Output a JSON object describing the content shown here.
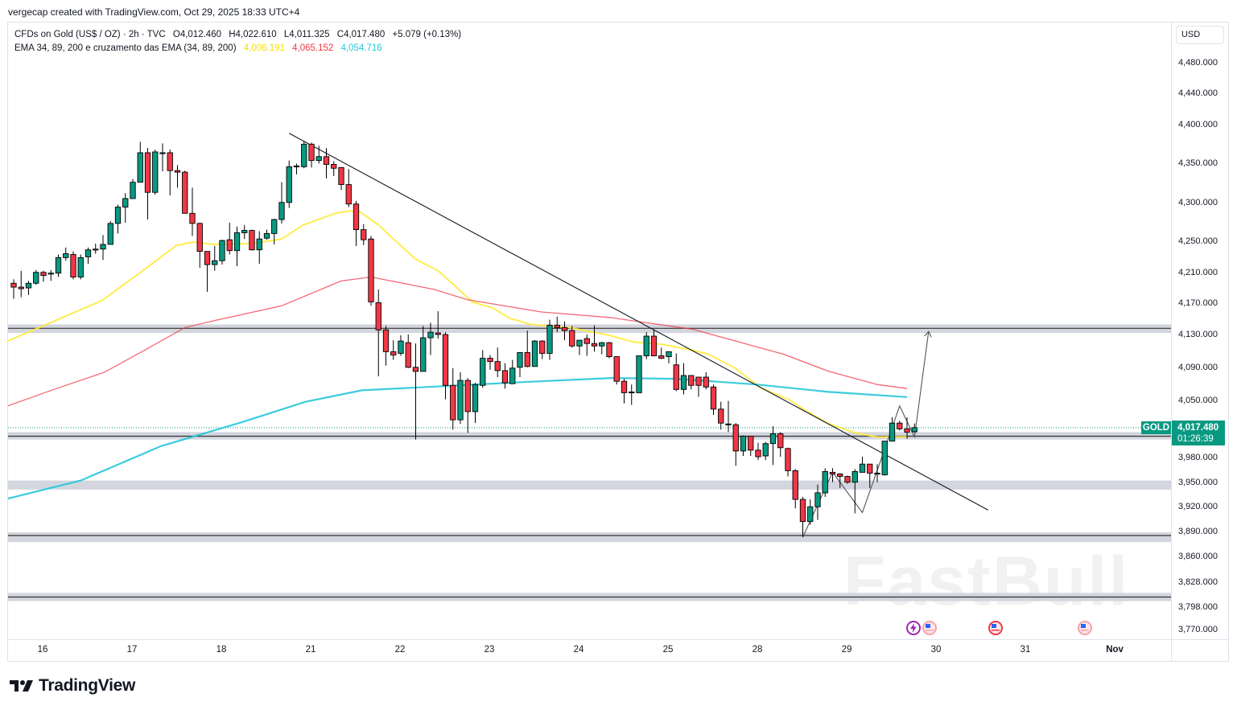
{
  "header": {
    "credit": "vergecap created with TradingView.com, Oct 29, 2025 18:33 UTC+4"
  },
  "legend": {
    "symbol": "CFDs on Gold (US$ / OZ) · 2h · TVC",
    "open": "O4,012.460",
    "high": "H4,022.610",
    "low": "L4,011.325",
    "close": "C4,017.480",
    "change": "+5.079 (+0.13%)",
    "indicator": "EMA 34, 89, 200 e cruzamento das EMA (34, 89, 200)",
    "ema34": "4,006.191",
    "ema89": "4,065.152",
    "ema200": "4,054.716"
  },
  "price_axis": {
    "currency": "USD",
    "ticks": [
      "4,480.000",
      "4,440.000",
      "4,400.000",
      "4,350.000",
      "4,300.000",
      "4,250.000",
      "4,210.000",
      "4,170.000",
      "4,130.000",
      "4,090.000",
      "4,050.000",
      "3,980.000",
      "3,950.000",
      "3,920.000",
      "3,890.000",
      "3,860.000",
      "3,828.000",
      "3,798.000",
      "3,770.000"
    ],
    "tick_values": [
      4480,
      4440,
      4400,
      4350,
      4300,
      4250,
      4210,
      4170,
      4130,
      4090,
      4050,
      3980,
      3950,
      3920,
      3890,
      3860,
      3828,
      3798,
      3770
    ],
    "last_price_label": "4,017.480",
    "countdown": "01:26:39",
    "symbol_tag": "GOLD"
  },
  "time_axis": {
    "labels": [
      "16",
      "17",
      "18",
      "21",
      "22",
      "23",
      "24",
      "25",
      "28",
      "29",
      "30",
      "31",
      "Nov"
    ]
  },
  "footer": {
    "brand": "TradingView"
  },
  "watermark": "FastBull",
  "colors": {
    "up": "#089981",
    "down": "#F23645",
    "ema34": "#FFEB3B",
    "ema89": "#F23645",
    "ema200": "#26C6DA",
    "zone": "#D1D4DC",
    "trendline": "#131722"
  },
  "chart_data": {
    "type": "candlestick",
    "symbol": "CFDs on Gold (US$ / OZ)",
    "interval": "2h",
    "ylim": [
      3770,
      4480
    ],
    "last_close": 4017.48,
    "candles_ohlc": [
      [
        4197,
        4202,
        4177,
        4192
      ],
      [
        4192,
        4213,
        4179,
        4190
      ],
      [
        4191,
        4200,
        4182,
        4197
      ],
      [
        4197,
        4214,
        4195,
        4211
      ],
      [
        4211,
        4213,
        4199,
        4207
      ],
      [
        4210,
        4214,
        4200,
        4210
      ],
      [
        4210,
        4234,
        4205,
        4230
      ],
      [
        4230,
        4243,
        4226,
        4235
      ],
      [
        4234,
        4238,
        4202,
        4205
      ],
      [
        4205,
        4234,
        4202,
        4230
      ],
      [
        4231,
        4243,
        4222,
        4240
      ],
      [
        4241,
        4248,
        4235,
        4241
      ],
      [
        4241,
        4259,
        4227,
        4247
      ],
      [
        4247,
        4277,
        4247,
        4274
      ],
      [
        4274,
        4298,
        4261,
        4295
      ],
      [
        4295,
        4313,
        4275,
        4306
      ],
      [
        4306,
        4331,
        4306,
        4327
      ],
      [
        4327,
        4379,
        4327,
        4365
      ],
      [
        4365,
        4371,
        4279,
        4314
      ],
      [
        4314,
        4369,
        4311,
        4366
      ],
      [
        4365,
        4377,
        4341,
        4365
      ],
      [
        4365,
        4369,
        4310,
        4342
      ],
      [
        4342,
        4349,
        4320,
        4340
      ],
      [
        4340,
        4342,
        4287,
        4287
      ],
      [
        4287,
        4320,
        4258,
        4274
      ],
      [
        4274,
        4275,
        4217,
        4238
      ],
      [
        4238,
        4238,
        4186,
        4221
      ],
      [
        4221,
        4245,
        4213,
        4226
      ],
      [
        4226,
        4253,
        4221,
        4252
      ],
      [
        4253,
        4275,
        4234,
        4239
      ],
      [
        4239,
        4270,
        4219,
        4262
      ],
      [
        4262,
        4272,
        4254,
        4265
      ],
      [
        4265,
        4266,
        4239,
        4240
      ],
      [
        4240,
        4264,
        4222,
        4254
      ],
      [
        4255,
        4266,
        4253,
        4261
      ],
      [
        4261,
        4280,
        4247,
        4279
      ],
      [
        4279,
        4327,
        4274,
        4301
      ],
      [
        4301,
        4355,
        4294,
        4347
      ],
      [
        4347,
        4351,
        4337,
        4348
      ],
      [
        4347,
        4380,
        4345,
        4376
      ],
      [
        4376,
        4378,
        4346,
        4355
      ],
      [
        4355,
        4374,
        4351,
        4360
      ],
      [
        4360,
        4371,
        4332,
        4350
      ],
      [
        4350,
        4354,
        4335,
        4345
      ],
      [
        4346,
        4346,
        4317,
        4324
      ],
      [
        4324,
        4344,
        4295,
        4299
      ],
      [
        4299,
        4303,
        4245,
        4266
      ],
      [
        4266,
        4273,
        4246,
        4253
      ],
      [
        4254,
        4258,
        4168,
        4173
      ],
      [
        4172,
        4189,
        4080,
        4137
      ],
      [
        4137,
        4142,
        4093,
        4110
      ],
      [
        4110,
        4124,
        4100,
        4106
      ],
      [
        4108,
        4130,
        4105,
        4123
      ],
      [
        4121,
        4131,
        4090,
        4091
      ],
      [
        4091,
        4120,
        4003,
        4086
      ],
      [
        4086,
        4142,
        4086,
        4127
      ],
      [
        4127,
        4146,
        4106,
        4134
      ],
      [
        4133,
        4161,
        4126,
        4131
      ],
      [
        4131,
        4134,
        4052,
        4069
      ],
      [
        4069,
        4090,
        4015,
        4027
      ],
      [
        4027,
        4085,
        4022,
        4075
      ],
      [
        4075,
        4078,
        4011,
        4037
      ],
      [
        4037,
        4072,
        4023,
        4070
      ],
      [
        4069,
        4112,
        4066,
        4102
      ],
      [
        4102,
        4106,
        4088,
        4098
      ],
      [
        4098,
        4115,
        4079,
        4087
      ],
      [
        4087,
        4096,
        4065,
        4072
      ],
      [
        4071,
        4100,
        4071,
        4090
      ],
      [
        4091,
        4109,
        4079,
        4109
      ],
      [
        4109,
        4136,
        4091,
        4092
      ],
      [
        4092,
        4124,
        4092,
        4123
      ],
      [
        4123,
        4124,
        4101,
        4108
      ],
      [
        4108,
        4150,
        4100,
        4143
      ],
      [
        4143,
        4154,
        4134,
        4140
      ],
      [
        4140,
        4148,
        4124,
        4136
      ],
      [
        4136,
        4142,
        4115,
        4117
      ],
      [
        4117,
        4124,
        4106,
        4124
      ],
      [
        4126,
        4131,
        4105,
        4120
      ],
      [
        4120,
        4143,
        4110,
        4117
      ],
      [
        4117,
        4122,
        4107,
        4121
      ],
      [
        4121,
        4122,
        4102,
        4104
      ],
      [
        4104,
        4104,
        4070,
        4074
      ],
      [
        4074,
        4077,
        4047,
        4060
      ],
      [
        4061,
        4070,
        4045,
        4061
      ],
      [
        4060,
        4105,
        4060,
        4105
      ],
      [
        4105,
        4134,
        4101,
        4129
      ],
      [
        4129,
        4137,
        4105,
        4105
      ],
      [
        4105,
        4115,
        4101,
        4102
      ],
      [
        4104,
        4110,
        4096,
        4110
      ],
      [
        4094,
        4108,
        4062,
        4064
      ],
      [
        4064,
        4096,
        4058,
        4081
      ],
      [
        4081,
        4081,
        4064,
        4069
      ],
      [
        4079,
        4079,
        4055,
        4069
      ],
      [
        4079,
        4085,
        4064,
        4067
      ],
      [
        4067,
        4070,
        4033,
        4040
      ],
      [
        4040,
        4049,
        4015,
        4023
      ],
      [
        4022,
        4050,
        4012,
        4022
      ],
      [
        4021,
        4023,
        3971,
        3989
      ],
      [
        3989,
        4008,
        3983,
        4007
      ],
      [
        4007,
        4007,
        3983,
        3990
      ],
      [
        3990,
        3999,
        3978,
        3982
      ],
      [
        3983,
        4000,
        3978,
        3998
      ],
      [
        3998,
        4019,
        3972,
        4010
      ],
      [
        4010,
        4012,
        3982,
        3993
      ],
      [
        3992,
        3993,
        3958,
        3965
      ],
      [
        3965,
        3967,
        3919,
        3930
      ],
      [
        3930,
        3933,
        3884,
        3903
      ],
      [
        3903,
        3930,
        3899,
        3921
      ],
      [
        3921,
        3948,
        3905,
        3938
      ],
      [
        3938,
        3968,
        3933,
        3964
      ],
      [
        3963,
        3968,
        3951,
        3961
      ],
      [
        3961,
        3962,
        3944,
        3958
      ],
      [
        3958,
        3959,
        3949,
        3951
      ],
      [
        3951,
        3967,
        3913,
        3964
      ],
      [
        3963,
        3982,
        3963,
        3973
      ],
      [
        3973,
        3973,
        3944,
        3962
      ],
      [
        3962,
        3973,
        3951,
        3962
      ],
      [
        3960,
        4001,
        3959,
        4001
      ],
      [
        4001,
        4030,
        4001,
        4023
      ],
      [
        4023,
        4026,
        4014,
        4016
      ],
      [
        4016,
        4030,
        4004,
        4012
      ],
      [
        4012.46,
        4022.61,
        4011.325,
        4017.48
      ]
    ],
    "series": [
      {
        "name": "EMA 34",
        "points": [
          [
            -0.8,
            4123
          ],
          [
            5.4,
            4148
          ],
          [
            11.9,
            4175
          ],
          [
            16.9,
            4210
          ],
          [
            21.9,
            4246
          ],
          [
            24.1,
            4250
          ],
          [
            27,
            4247
          ],
          [
            32,
            4248
          ],
          [
            36,
            4254
          ],
          [
            38.9,
            4272
          ],
          [
            43.2,
            4287
          ],
          [
            45,
            4290
          ],
          [
            46.5,
            4289
          ],
          [
            49,
            4272
          ],
          [
            51,
            4254
          ],
          [
            54,
            4228
          ],
          [
            57,
            4213
          ],
          [
            59,
            4196
          ],
          [
            61.6,
            4173
          ],
          [
            64.4,
            4165
          ],
          [
            66.6,
            4152
          ],
          [
            69.5,
            4144
          ],
          [
            74.6,
            4140
          ],
          [
            80,
            4130
          ],
          [
            83.2,
            4122
          ],
          [
            87.1,
            4119
          ],
          [
            91.1,
            4112
          ],
          [
            93.3,
            4107
          ],
          [
            96.9,
            4090
          ],
          [
            100.5,
            4065
          ],
          [
            104.1,
            4052
          ],
          [
            106.6,
            4037
          ],
          [
            109.5,
            4022
          ],
          [
            113.1,
            4011
          ],
          [
            116,
            4006
          ],
          [
            120,
            4006.191
          ]
        ]
      },
      {
        "name": "EMA 89",
        "points": [
          [
            -0.8,
            4044
          ],
          [
            5.7,
            4065
          ],
          [
            12.2,
            4085
          ],
          [
            17.6,
            4112
          ],
          [
            23,
            4140
          ],
          [
            27,
            4149
          ],
          [
            36,
            4168
          ],
          [
            44,
            4200
          ],
          [
            48,
            4205
          ],
          [
            56.5,
            4189
          ],
          [
            60.9,
            4176
          ],
          [
            70.9,
            4160
          ],
          [
            80,
            4153
          ],
          [
            91.1,
            4138
          ],
          [
            103.4,
            4107
          ],
          [
            109.5,
            4086
          ],
          [
            116,
            4070
          ],
          [
            120,
            4065.152
          ]
        ]
      },
      {
        "name": "EMA 200",
        "points": [
          [
            -0.8,
            3931
          ],
          [
            9,
            3953
          ],
          [
            19.8,
            3995
          ],
          [
            30.6,
            4024
          ],
          [
            39.2,
            4049
          ],
          [
            46.8,
            4063
          ],
          [
            57.6,
            4068
          ],
          [
            68.4,
            4073
          ],
          [
            80.3,
            4078
          ],
          [
            89,
            4077
          ],
          [
            99.8,
            4070
          ],
          [
            109.5,
            4061
          ],
          [
            120,
            4054.716
          ]
        ]
      }
    ],
    "zones": [
      {
        "low": 4133,
        "high": 4144,
        "line": 4139
      },
      {
        "low": 4003,
        "high": 4012,
        "line": 4007
      },
      {
        "low": 3942,
        "high": 3953,
        "line": null
      },
      {
        "low": 3878,
        "high": 3890,
        "line": 3886
      },
      {
        "low": 3806,
        "high": 3816,
        "line": 3811
      }
    ],
    "trendline": [
      [
        37,
        4390
      ],
      [
        130.9,
        3917
      ]
    ],
    "projection_path": [
      [
        106,
        3884
      ],
      [
        110,
        3963
      ],
      [
        114,
        3914
      ],
      [
        116.8,
        3986
      ],
      [
        119,
        4044
      ],
      [
        121,
        4006
      ],
      [
        122.9,
        4135
      ]
    ],
    "grid": false
  }
}
